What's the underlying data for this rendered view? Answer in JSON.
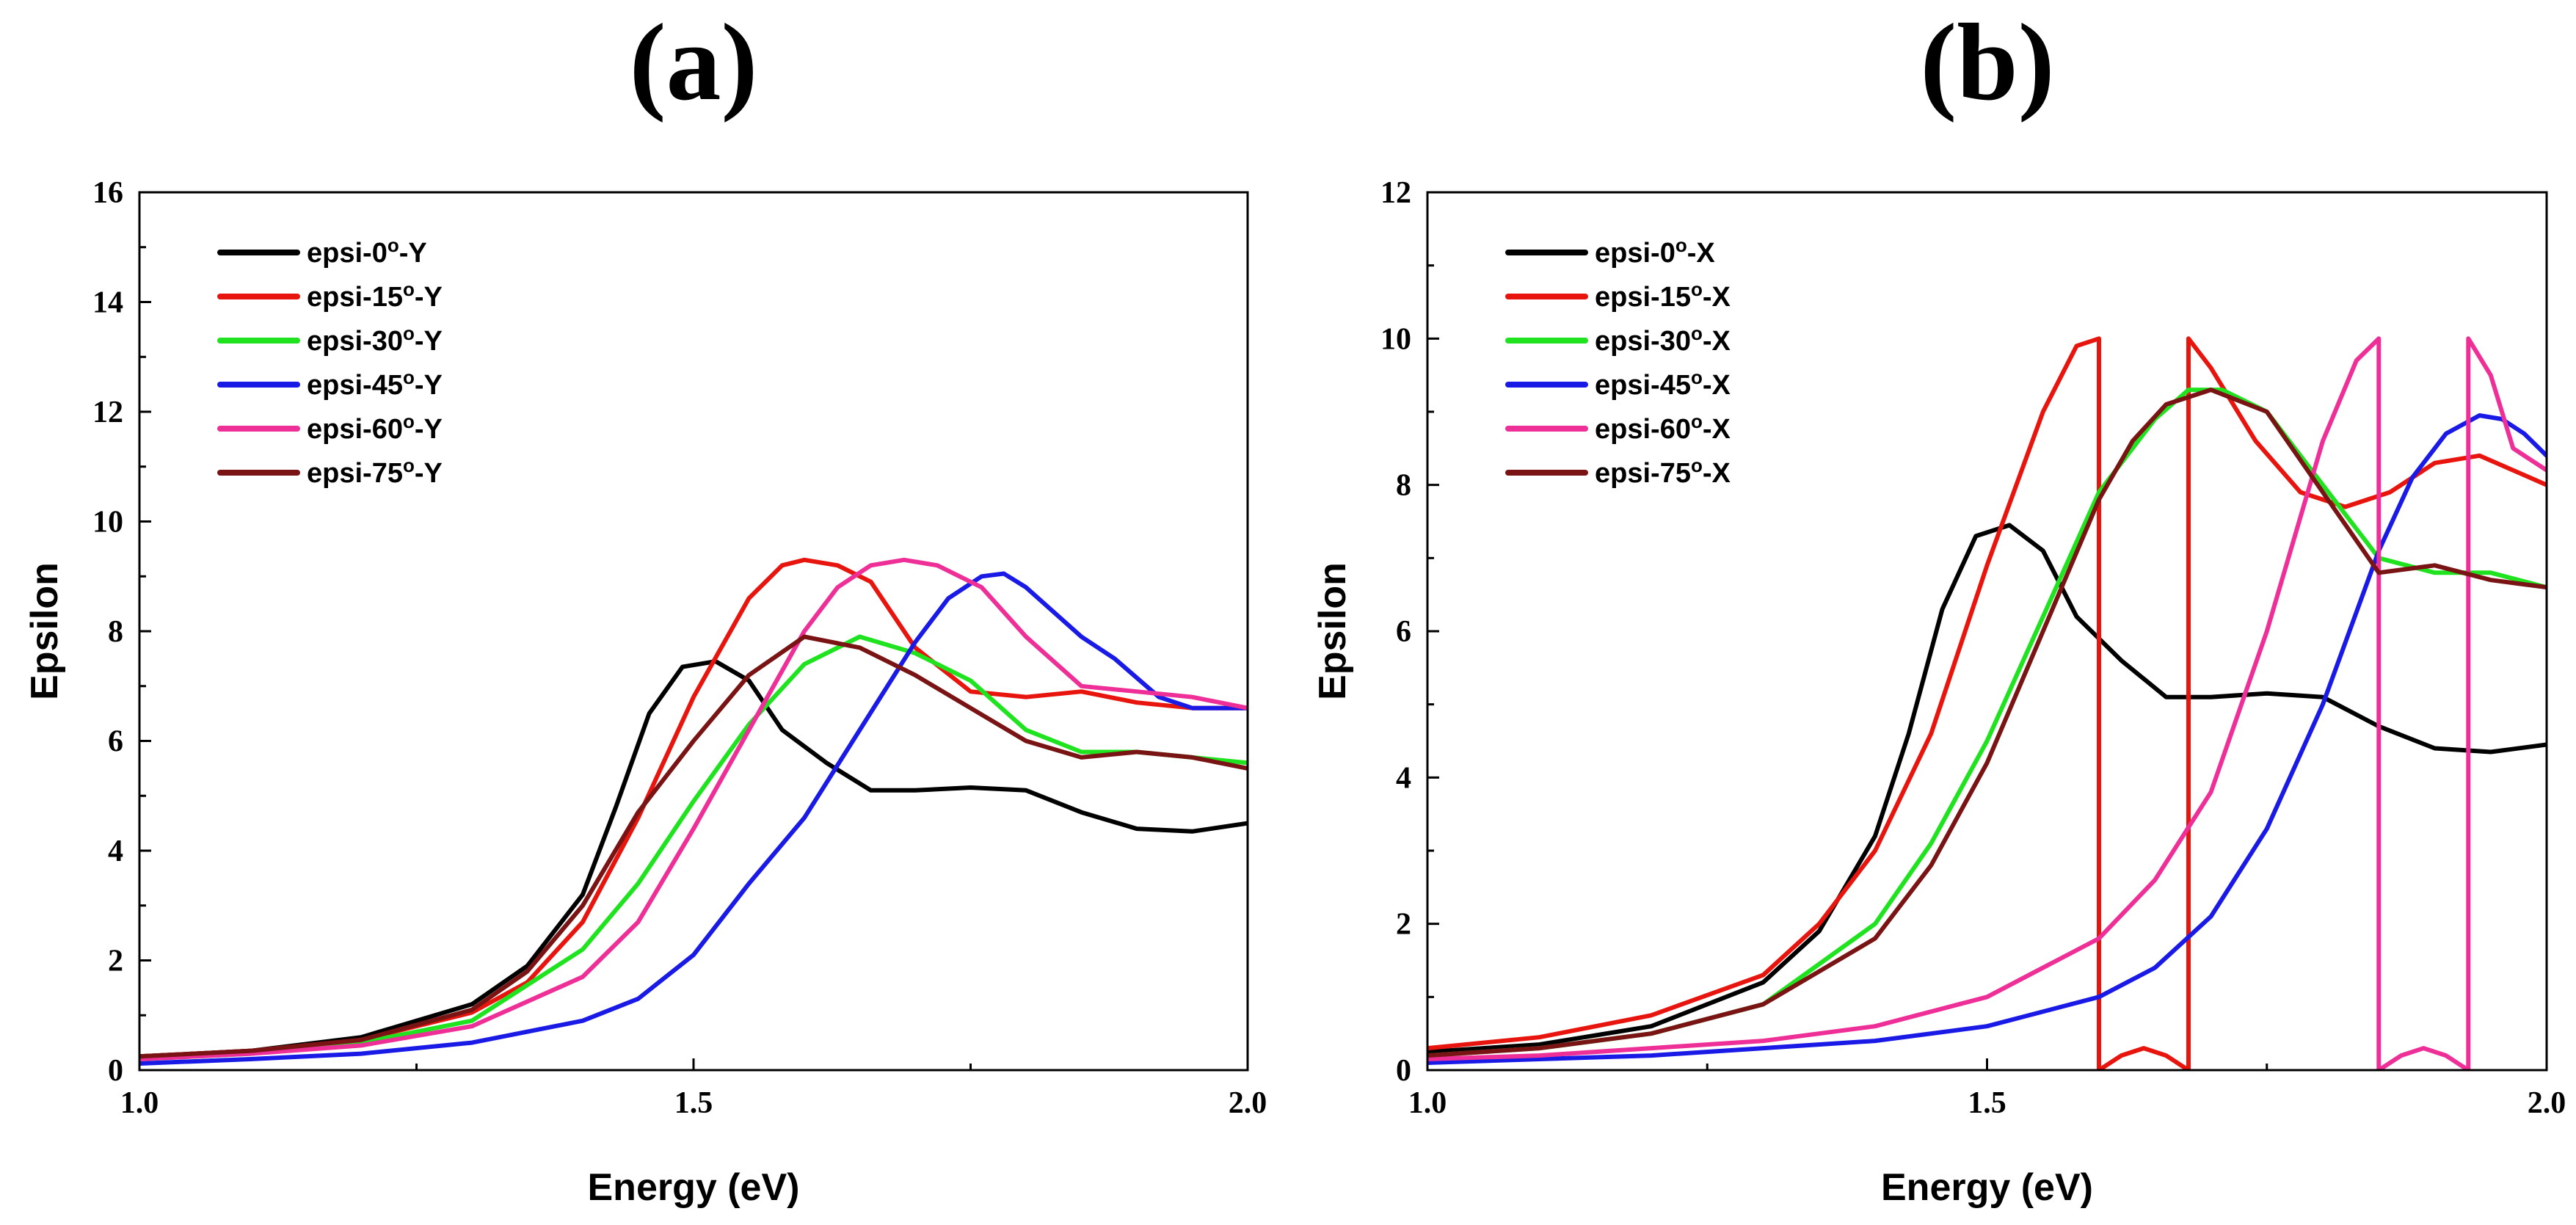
{
  "chart_data": [
    {
      "panel_label": "(a)",
      "type": "line",
      "xlabel": "Energy (eV)",
      "ylabel": "Epsilon",
      "xlim": [
        1.0,
        2.0
      ],
      "ylim": [
        0,
        16
      ],
      "xticks": [
        1.0,
        1.5,
        2.0
      ],
      "yticks": [
        0,
        2,
        4,
        6,
        8,
        10,
        12,
        14,
        16
      ],
      "legend_position": "top-left",
      "series": [
        {
          "name": "epsi-0",
          "suffix": "-Y",
          "color": "#000000",
          "x": [
            1.0,
            1.1,
            1.2,
            1.3,
            1.35,
            1.4,
            1.43,
            1.46,
            1.49,
            1.52,
            1.55,
            1.58,
            1.62,
            1.66,
            1.7,
            1.75,
            1.8,
            1.85,
            1.9,
            1.95,
            2.0
          ],
          "y": [
            0.25,
            0.35,
            0.6,
            1.2,
            1.9,
            3.2,
            4.8,
            6.5,
            7.35,
            7.45,
            7.1,
            6.2,
            5.6,
            5.1,
            5.1,
            5.15,
            5.1,
            4.7,
            4.4,
            4.35,
            4.5
          ]
        },
        {
          "name": "epsi-15",
          "suffix": "-Y",
          "color": "#e8150f",
          "x": [
            1.0,
            1.1,
            1.2,
            1.3,
            1.35,
            1.4,
            1.45,
            1.5,
            1.55,
            1.58,
            1.6,
            1.63,
            1.66,
            1.7,
            1.75,
            1.8,
            1.85,
            1.9,
            1.95,
            2.0
          ],
          "y": [
            0.25,
            0.35,
            0.55,
            1.05,
            1.6,
            2.7,
            4.6,
            6.8,
            8.6,
            9.2,
            9.3,
            9.2,
            8.9,
            7.7,
            6.9,
            6.8,
            6.9,
            6.7,
            6.6,
            6.6
          ]
        },
        {
          "name": "epsi-30",
          "suffix": "-Y",
          "color": "#1ee31e",
          "x": [
            1.0,
            1.1,
            1.2,
            1.3,
            1.4,
            1.45,
            1.5,
            1.55,
            1.6,
            1.65,
            1.7,
            1.75,
            1.8,
            1.85,
            1.9,
            1.95,
            2.0
          ],
          "y": [
            0.2,
            0.3,
            0.5,
            0.9,
            2.2,
            3.4,
            4.9,
            6.3,
            7.4,
            7.9,
            7.6,
            7.1,
            6.2,
            5.8,
            5.8,
            5.7,
            5.6
          ]
        },
        {
          "name": "epsi-45",
          "suffix": "-Y",
          "color": "#1a1ae6",
          "x": [
            1.0,
            1.1,
            1.2,
            1.3,
            1.4,
            1.45,
            1.5,
            1.55,
            1.6,
            1.65,
            1.7,
            1.73,
            1.76,
            1.78,
            1.8,
            1.85,
            1.88,
            1.92,
            1.95,
            2.0
          ],
          "y": [
            0.12,
            0.2,
            0.3,
            0.5,
            0.9,
            1.3,
            2.1,
            3.4,
            4.6,
            6.2,
            7.8,
            8.6,
            9.0,
            9.05,
            8.8,
            7.9,
            7.5,
            6.8,
            6.6,
            6.6
          ]
        },
        {
          "name": "epsi-60",
          "suffix": "-Y",
          "color": "#ee2f97",
          "x": [
            1.0,
            1.1,
            1.2,
            1.3,
            1.4,
            1.45,
            1.5,
            1.55,
            1.6,
            1.63,
            1.66,
            1.69,
            1.72,
            1.76,
            1.8,
            1.85,
            1.9,
            1.95,
            2.0
          ],
          "y": [
            0.2,
            0.3,
            0.45,
            0.8,
            1.7,
            2.7,
            4.4,
            6.2,
            8.0,
            8.8,
            9.2,
            9.3,
            9.2,
            8.8,
            7.9,
            7.0,
            6.9,
            6.8,
            6.6
          ]
        },
        {
          "name": "epsi-75",
          "suffix": "-Y",
          "color": "#7a1414",
          "x": [
            1.0,
            1.1,
            1.2,
            1.3,
            1.35,
            1.4,
            1.45,
            1.5,
            1.55,
            1.6,
            1.65,
            1.7,
            1.75,
            1.8,
            1.85,
            1.9,
            1.95,
            2.0
          ],
          "y": [
            0.25,
            0.35,
            0.55,
            1.1,
            1.8,
            3.0,
            4.7,
            6.0,
            7.2,
            7.9,
            7.7,
            7.2,
            6.6,
            6.0,
            5.7,
            5.8,
            5.7,
            5.5
          ]
        }
      ]
    },
    {
      "panel_label": "(b)",
      "type": "line",
      "xlabel": "Energy (eV)",
      "ylabel": "Epsilon",
      "xlim": [
        1.0,
        2.0
      ],
      "ylim": [
        0,
        12
      ],
      "xticks": [
        1.0,
        1.5,
        2.0
      ],
      "yticks": [
        0,
        2,
        4,
        6,
        8,
        10,
        12
      ],
      "legend_position": "top-left",
      "series": [
        {
          "name": "epsi-0",
          "suffix": "-X",
          "color": "#000000",
          "x": [
            1.0,
            1.1,
            1.2,
            1.3,
            1.35,
            1.4,
            1.43,
            1.46,
            1.49,
            1.52,
            1.55,
            1.58,
            1.62,
            1.66,
            1.7,
            1.75,
            1.8,
            1.85,
            1.9,
            1.95,
            2.0
          ],
          "y": [
            0.25,
            0.35,
            0.6,
            1.2,
            1.9,
            3.2,
            4.6,
            6.3,
            7.3,
            7.45,
            7.1,
            6.2,
            5.6,
            5.1,
            5.1,
            5.15,
            5.1,
            4.7,
            4.4,
            4.35,
            4.45
          ]
        },
        {
          "name": "epsi-15",
          "suffix": "-X",
          "color": "#e8150f",
          "x": [
            1.0,
            1.1,
            1.2,
            1.3,
            1.35,
            1.4,
            1.45,
            1.5,
            1.55,
            1.58,
            1.6,
            1.6,
            1.62,
            1.64,
            1.66,
            1.68,
            1.68,
            1.7,
            1.74,
            1.78,
            1.82,
            1.86,
            1.9,
            1.94,
            1.97,
            2.0
          ],
          "y": [
            0.3,
            0.45,
            0.75,
            1.3,
            2.0,
            3.0,
            4.6,
            6.9,
            9.0,
            9.9,
            10.0,
            0,
            0.2,
            0.3,
            0.2,
            0,
            10.0,
            9.6,
            8.6,
            7.9,
            7.7,
            7.9,
            8.3,
            8.4,
            8.2,
            8.0
          ]
        },
        {
          "name": "epsi-30",
          "suffix": "-X",
          "color": "#1ee31e",
          "x": [
            1.0,
            1.1,
            1.2,
            1.3,
            1.4,
            1.45,
            1.5,
            1.55,
            1.6,
            1.65,
            1.68,
            1.71,
            1.75,
            1.8,
            1.85,
            1.9,
            1.95,
            2.0
          ],
          "y": [
            0.2,
            0.3,
            0.5,
            0.9,
            2.0,
            3.1,
            4.5,
            6.2,
            7.9,
            8.9,
            9.3,
            9.3,
            9.0,
            8.0,
            7.0,
            6.8,
            6.8,
            6.6
          ]
        },
        {
          "name": "epsi-45",
          "suffix": "-X",
          "color": "#1a1ae6",
          "x": [
            1.0,
            1.1,
            1.2,
            1.3,
            1.4,
            1.5,
            1.6,
            1.65,
            1.7,
            1.75,
            1.8,
            1.85,
            1.88,
            1.91,
            1.94,
            1.96,
            1.98,
            2.0
          ],
          "y": [
            0.1,
            0.15,
            0.2,
            0.3,
            0.4,
            0.6,
            1.0,
            1.4,
            2.1,
            3.3,
            5.0,
            7.1,
            8.1,
            8.7,
            8.95,
            8.9,
            8.7,
            8.4
          ]
        },
        {
          "name": "epsi-60",
          "suffix": "-X",
          "color": "#ee2f97",
          "x": [
            1.0,
            1.1,
            1.2,
            1.3,
            1.4,
            1.5,
            1.6,
            1.65,
            1.7,
            1.75,
            1.8,
            1.83,
            1.85,
            1.85,
            1.87,
            1.89,
            1.91,
            1.93,
            1.93,
            1.95,
            1.97,
            2.0
          ],
          "y": [
            0.15,
            0.2,
            0.3,
            0.4,
            0.6,
            1.0,
            1.8,
            2.6,
            3.8,
            6.0,
            8.6,
            9.7,
            10.0,
            0,
            0.2,
            0.3,
            0.2,
            0,
            10.0,
            9.5,
            8.5,
            8.2
          ]
        },
        {
          "name": "epsi-75",
          "suffix": "-X",
          "color": "#7a1414",
          "x": [
            1.0,
            1.1,
            1.2,
            1.3,
            1.4,
            1.45,
            1.5,
            1.55,
            1.6,
            1.63,
            1.66,
            1.7,
            1.75,
            1.8,
            1.85,
            1.9,
            1.95,
            2.0
          ],
          "y": [
            0.2,
            0.3,
            0.5,
            0.9,
            1.8,
            2.8,
            4.2,
            6.0,
            7.8,
            8.6,
            9.1,
            9.3,
            9.0,
            7.9,
            6.8,
            6.9,
            6.7,
            6.6
          ]
        }
      ]
    }
  ]
}
